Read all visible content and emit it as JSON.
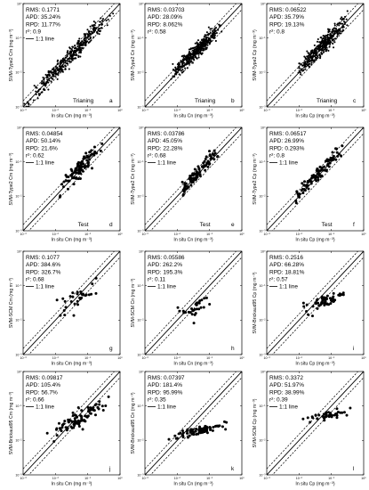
{
  "chart_data": [
    {
      "id": "a",
      "type": "scatter",
      "letter": "a",
      "tag": "Trianing",
      "xlabel": "In situ Cm (mg m⁻³)",
      "ylabel": "SVM-Type2 Cm (mg m⁻³)",
      "xlim": [
        0.001,
        1
      ],
      "ylim": [
        0.001,
        1
      ],
      "scale": "log",
      "x_ticks": [
        "10⁻³",
        "10⁻²",
        "10⁻¹",
        "10⁰"
      ],
      "y_ticks": [
        "10⁻³",
        "10⁻²",
        "10⁻¹",
        "10⁰"
      ],
      "stats": {
        "rms": "RMS: 0.1771",
        "apd": "APD: 35.24%",
        "rpd": "RPD: 11.77%",
        "r2": "r²: 0.9"
      },
      "legend": "1:1 line",
      "gen": {
        "n": 380,
        "xmin": -3.0,
        "xmax": -0.2,
        "slope": 1.0,
        "off": 0.0,
        "sd": 0.12,
        "seed": 11
      }
    },
    {
      "id": "b",
      "type": "scatter",
      "letter": "b",
      "tag": "Trianing",
      "xlabel": "In situ Cn (mg m⁻³)",
      "ylabel": "SVM-Type2 Cn (mg m⁻³)",
      "xlim": [
        0.001,
        1
      ],
      "ylim": [
        0.001,
        1
      ],
      "scale": "log",
      "x_ticks": [
        "10⁻³",
        "10⁻²",
        "10⁻¹",
        "10⁰"
      ],
      "y_ticks": [
        "10⁻³",
        "10⁻²",
        "10⁻¹",
        "10⁰"
      ],
      "stats": {
        "rms": "RMS: 0.03703",
        "apd": "APD: 28.09%",
        "rpd": "RPD: 8.062%",
        "r2": "r²: 0.58"
      },
      "legend": "",
      "gen": {
        "n": 380,
        "xmin": -2.2,
        "xmax": -0.6,
        "slope": 0.9,
        "off": -0.1,
        "sd": 0.11,
        "seed": 23
      }
    },
    {
      "id": "c",
      "type": "scatter",
      "letter": "c",
      "tag": "Trianing",
      "xlabel": "In situ Cp (mg m⁻³)",
      "ylabel": "SVM-Type2 Cp (mg m⁻³)",
      "xlim": [
        0.001,
        1
      ],
      "ylim": [
        0.001,
        1
      ],
      "scale": "log",
      "x_ticks": [
        "10⁻³",
        "10⁻²",
        "10⁻¹",
        "10⁰"
      ],
      "y_ticks": [
        "10⁻³",
        "10⁻²",
        "10⁻¹",
        "10⁰"
      ],
      "stats": {
        "rms": "RMS: 0.06522",
        "apd": "APD: 35.79%",
        "rpd": "RPD: 19.13%",
        "r2": "r²: 0.8"
      },
      "legend": "",
      "gen": {
        "n": 380,
        "xmin": -2.1,
        "xmax": -0.4,
        "slope": 0.95,
        "off": 0.0,
        "sd": 0.13,
        "seed": 37
      }
    },
    {
      "id": "d",
      "type": "scatter",
      "letter": "d",
      "tag": "Test",
      "xlabel": "In situ Cm (mg m⁻³)",
      "ylabel": "SVM-Type2 Cm (mg m⁻³)",
      "xlim": [
        0.001,
        1
      ],
      "ylim": [
        0.001,
        1
      ],
      "scale": "log",
      "x_ticks": [
        "10⁻³",
        "10⁻²",
        "10⁻¹",
        "10⁰"
      ],
      "y_ticks": [
        "10⁻³",
        "10⁻²",
        "10⁻¹",
        "10⁰"
      ],
      "stats": {
        "rms": "RMS: 0.04854",
        "apd": "APD: 50.14%",
        "rpd": "RPD: 21.6%",
        "r2": "r²: 0.62"
      },
      "legend": "1:1 line",
      "gen": {
        "n": 95,
        "xmin": -2.0,
        "xmax": -0.5,
        "slope": 1.0,
        "off": 0.05,
        "sd": 0.13,
        "seed": 41
      }
    },
    {
      "id": "e",
      "type": "scatter",
      "letter": "e",
      "tag": "Test",
      "xlabel": "In situ Cn (mg m⁻³)",
      "ylabel": "SVM-Type2 Cn (mg m⁻³)",
      "xlim": [
        0.001,
        1
      ],
      "ylim": [
        0.001,
        1
      ],
      "scale": "log",
      "x_ticks": [
        "10⁻³",
        "10⁻²",
        "10⁻¹",
        "10⁰"
      ],
      "y_ticks": [
        "10⁻³",
        "10⁻²",
        "10⁻¹",
        "10⁰"
      ],
      "stats": {
        "rms": "RMS: 0.03786",
        "apd": "APD: 45.05%",
        "rpd": "RPD: 22.28%",
        "r2": "r²: 0.68"
      },
      "legend": "1:1 line",
      "gen": {
        "n": 95,
        "xmin": -2.0,
        "xmax": -0.7,
        "slope": 1.0,
        "off": 0.05,
        "sd": 0.11,
        "seed": 53
      }
    },
    {
      "id": "f",
      "type": "scatter",
      "letter": "f",
      "tag": "Test",
      "xlabel": "In situ Cp (mg m⁻³)",
      "ylabel": "SVM-Type2 Cp (mg m⁻³)",
      "xlim": [
        0.001,
        1
      ],
      "ylim": [
        0.001,
        1
      ],
      "scale": "log",
      "x_ticks": [
        "10⁻³",
        "10⁻²",
        "10⁻¹",
        "10⁰"
      ],
      "y_ticks": [
        "10⁻³",
        "10⁻²",
        "10⁻¹",
        "10⁰"
      ],
      "stats": {
        "rms": "RMS: 0.06517",
        "apd": "APD: 26.99%",
        "rpd": "RPD: 0.293%",
        "r2": "r²: 0.8"
      },
      "legend": "1:1 line",
      "gen": {
        "n": 95,
        "xmin": -2.2,
        "xmax": -0.6,
        "slope": 0.95,
        "off": 0.0,
        "sd": 0.1,
        "seed": 67
      }
    },
    {
      "id": "g",
      "type": "scatter",
      "letter": "g",
      "tag": "",
      "xlabel": "In situ Cm (mg m⁻³)",
      "ylabel": "SVM-SCM Cm (mg m⁻³)",
      "xlim": [
        0.001,
        1
      ],
      "ylim": [
        0.001,
        1
      ],
      "scale": "log",
      "x_ticks": [
        "10⁻³",
        "10⁻²",
        "10⁻¹",
        "10⁰"
      ],
      "y_ticks": [
        "10⁻³",
        "10⁻²",
        "10⁻¹",
        "10⁰"
      ],
      "stats": {
        "rms": "RMS: 0.1077",
        "apd": "APD: 384.6%",
        "rpd": "RPD: 326.7%",
        "r2": "r²: 0.68"
      },
      "legend": "1:1 line",
      "gen": {
        "n": 32,
        "xmin": -2.1,
        "xmax": -0.5,
        "slope": 0.7,
        "off": -0.45,
        "sd": 0.16,
        "seed": 71
      }
    },
    {
      "id": "h",
      "type": "scatter",
      "letter": "h",
      "tag": "",
      "xlabel": "In situ Cn (mg m⁻³)",
      "ylabel": "SVM-SCM Cn (mg m⁻³)",
      "xlim": [
        0.001,
        1
      ],
      "ylim": [
        0.001,
        1
      ],
      "scale": "log",
      "x_ticks": [
        "10⁻³",
        "10⁻²",
        "10⁻¹",
        "10⁰"
      ],
      "y_ticks": [
        "10⁻³",
        "10⁻²",
        "10⁻¹",
        "10⁰"
      ],
      "stats": {
        "rms": "RMS: 0.05586",
        "apd": "APD: 262.2%",
        "rpd": "RPD: 195.3%",
        "r2": "r²: 0.11"
      },
      "legend": "1:1 line",
      "gen": {
        "n": 30,
        "xmin": -2.1,
        "xmax": -0.8,
        "slope": 0.2,
        "off": -1.35,
        "sd": 0.12,
        "seed": 83
      }
    },
    {
      "id": "i",
      "type": "scatter",
      "letter": "i",
      "tag": "",
      "xlabel": "In situ Cp (mg m⁻³)",
      "ylabel": "SVM-Brickaud95 Cp (mg m⁻³)",
      "xlim": [
        0.001,
        1
      ],
      "ylim": [
        0.001,
        1
      ],
      "scale": "log",
      "x_ticks": [
        "10⁻³",
        "10⁻²",
        "10⁻¹",
        "10⁰"
      ],
      "y_ticks": [
        "10⁻³",
        "10⁻²",
        "10⁻¹",
        "10⁰"
      ],
      "stats": {
        "rms": "RMS: 0.2516",
        "apd": "APD: 66.28%",
        "rpd": "RPD: 18.81%",
        "r2": "r²: 0.57"
      },
      "legend": "1:1 line",
      "gen": {
        "n": 55,
        "xmin": -2.0,
        "xmax": -0.4,
        "slope": 0.35,
        "off": -1.05,
        "sd": 0.08,
        "seed": 97
      }
    },
    {
      "id": "j",
      "type": "scatter",
      "letter": "j",
      "tag": "",
      "xlabel": "In situ Cm (mg m⁻³)",
      "ylabel": "SVM-Brickaud95 Cm (mg m⁻³)",
      "xlim": [
        0.001,
        1
      ],
      "ylim": [
        0.001,
        1
      ],
      "scale": "log",
      "x_ticks": [
        "10⁻³",
        "10⁻²",
        "10⁻¹",
        "10⁰"
      ],
      "y_ticks": [
        "10⁻³",
        "10⁻²",
        "10⁻¹",
        "10⁰"
      ],
      "stats": {
        "rms": "RMS: 0.09817",
        "apd": "APD: 105.4%",
        "rpd": "RPD: 56.7%",
        "r2": "r²: 0.66"
      },
      "legend": "1:1 line",
      "gen": {
        "n": 85,
        "xmin": -2.3,
        "xmax": -0.3,
        "slope": 0.55,
        "off": -0.65,
        "sd": 0.13,
        "seed": 101
      }
    },
    {
      "id": "k",
      "type": "scatter",
      "letter": "k",
      "tag": "",
      "xlabel": "In situ Cn (mg m⁻³)",
      "ylabel": "SVM-Brickaud95 Cn (mg m⁻³)",
      "xlim": [
        0.001,
        1
      ],
      "ylim": [
        0.001,
        1
      ],
      "scale": "log",
      "x_ticks": [
        "10⁻³",
        "10⁻²",
        "10⁻¹",
        "10⁰"
      ],
      "y_ticks": [
        "10⁻³",
        "10⁻²",
        "10⁻¹",
        "10⁰"
      ],
      "stats": {
        "rms": "RMS: 0.07397",
        "apd": "APD: 181.4%",
        "rpd": "RPD: 95.99%",
        "r2": "r²: 0.35"
      },
      "legend": "1:1 line",
      "gen": {
        "n": 80,
        "xmin": -2.3,
        "xmax": -0.3,
        "slope": 0.2,
        "off": -1.45,
        "sd": 0.06,
        "seed": 113
      }
    },
    {
      "id": "l",
      "type": "scatter",
      "letter": "l",
      "tag": "",
      "xlabel": "In situ Cp (mg m⁻³)",
      "ylabel": "SVM-SCM Cp (mg m⁻³)",
      "xlim": [
        0.001,
        1
      ],
      "ylim": [
        0.001,
        1
      ],
      "scale": "log",
      "x_ticks": [
        "10⁻³",
        "10⁻²",
        "10⁻¹",
        "10⁰"
      ],
      "y_ticks": [
        "10⁻³",
        "10⁻²",
        "10⁻¹",
        "10⁰"
      ],
      "stats": {
        "rms": "RMS: 0.3372",
        "apd": "APD: 51.97%",
        "rpd": "RPD: 38.99%",
        "r2": "r²: 0.39"
      },
      "legend": "1:1 line",
      "gen": {
        "n": 40,
        "xmin": -2.0,
        "xmax": -0.3,
        "slope": 0.15,
        "off": -1.1,
        "sd": 0.07,
        "seed": 127
      }
    }
  ]
}
